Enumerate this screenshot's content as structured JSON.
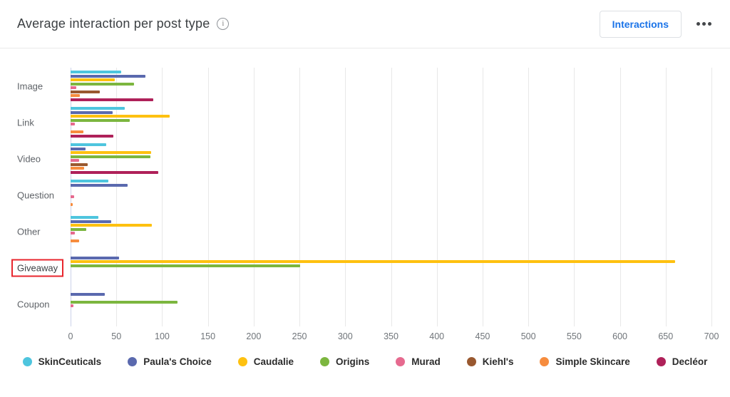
{
  "header": {
    "title": "Average interaction per post type",
    "info_icon": "info-circle",
    "interactions_button": "Interactions",
    "menu_icon": "ellipsis"
  },
  "annotation": {
    "highlight_box_color": "#e8262d",
    "highlighted_category": "Giveaway"
  },
  "chart_data": {
    "type": "bar",
    "orientation": "horizontal",
    "title": "Average interaction per post type",
    "categories": [
      "Image",
      "Link",
      "Video",
      "Question",
      "Other",
      "Giveaway",
      "Coupon"
    ],
    "series": [
      {
        "name": "SkinCeuticals",
        "color": "#4ec5de",
        "values": [
          55,
          59,
          39,
          41,
          30,
          0,
          0
        ]
      },
      {
        "name": "Paula's Choice",
        "color": "#5a69ae",
        "values": [
          82,
          46,
          16,
          62,
          44,
          53,
          37
        ]
      },
      {
        "name": "Caudalie",
        "color": "#fec110",
        "values": [
          48,
          108,
          88,
          0,
          89,
          660,
          0
        ]
      },
      {
        "name": "Origins",
        "color": "#7cb63f",
        "values": [
          69,
          65,
          87,
          0,
          17,
          251,
          117
        ]
      },
      {
        "name": "Murad",
        "color": "#e66a8f",
        "values": [
          6,
          5,
          9,
          4,
          5,
          0,
          3
        ]
      },
      {
        "name": "Kiehl's",
        "color": "#99582f",
        "values": [
          32,
          0,
          19,
          0,
          0,
          0,
          0
        ]
      },
      {
        "name": "Simple Skincare",
        "color": "#f68c3e",
        "values": [
          10,
          14,
          15,
          2,
          9,
          0,
          0
        ]
      },
      {
        "name": "Decléor",
        "color": "#af2159",
        "values": [
          90,
          47,
          96,
          0,
          0,
          0,
          0
        ]
      }
    ],
    "xlim": [
      0,
      700
    ],
    "ticks": [
      0,
      50,
      100,
      150,
      200,
      250,
      300,
      350,
      400,
      450,
      500,
      550,
      600,
      650,
      700
    ],
    "grid": true,
    "legend_position": "bottom"
  }
}
